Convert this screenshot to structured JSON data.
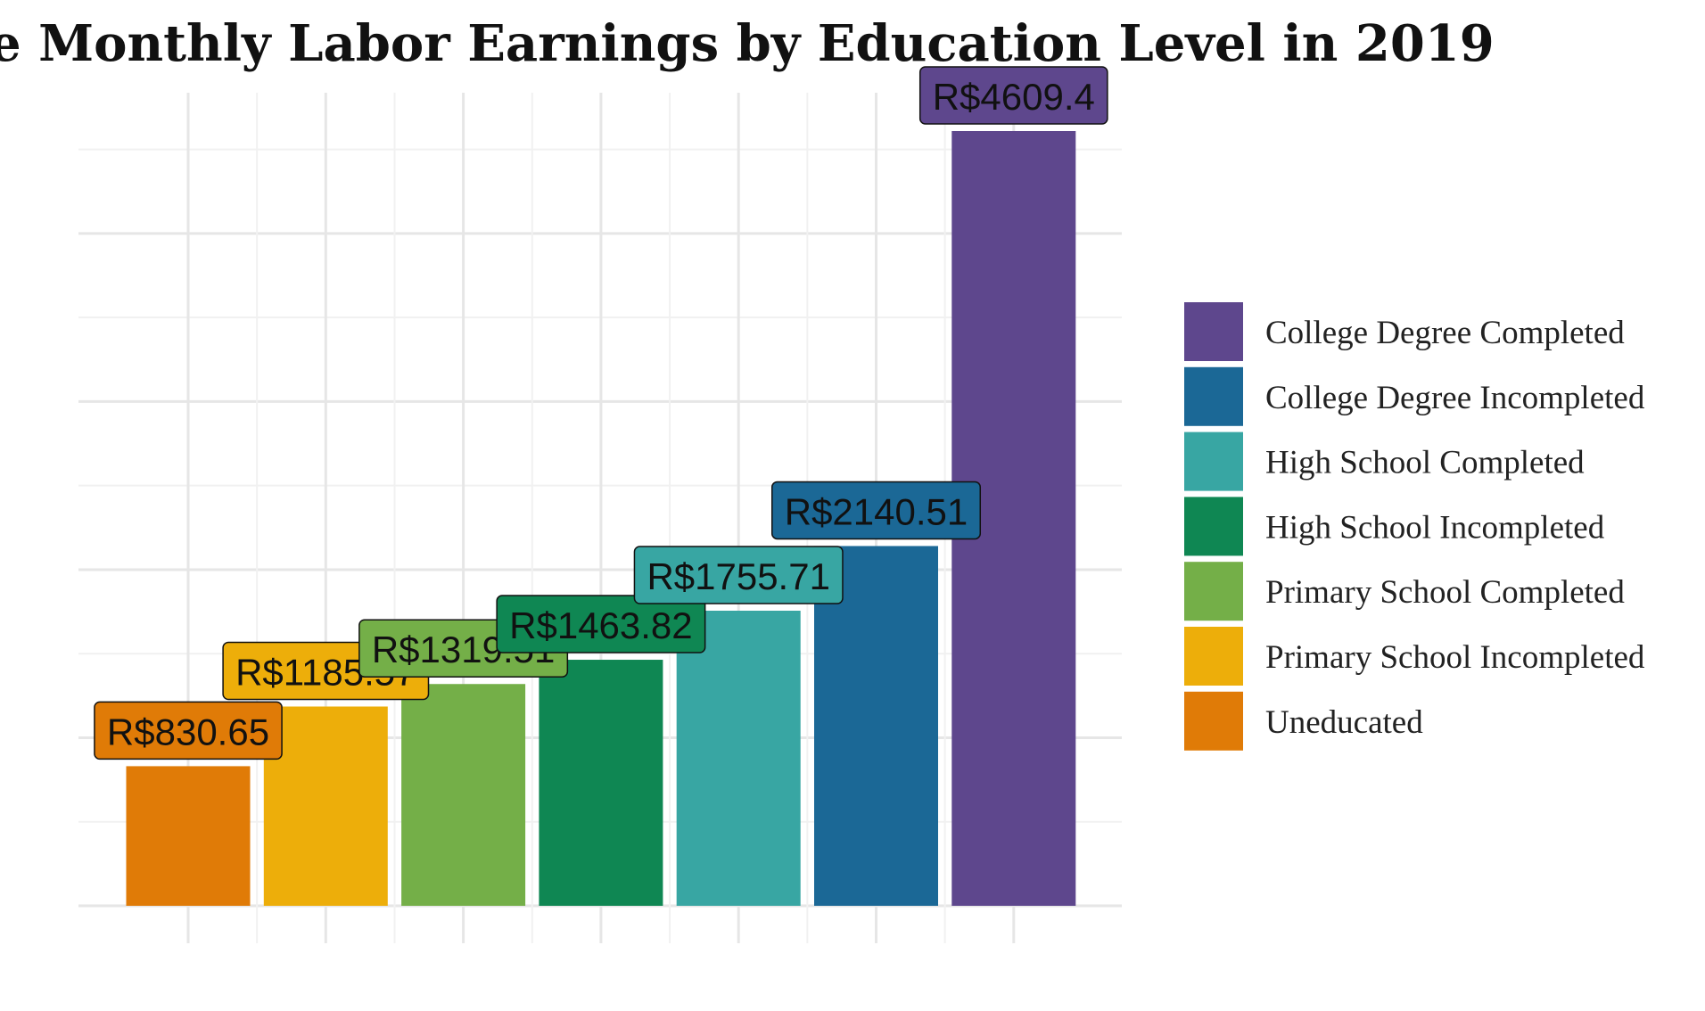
{
  "chart_data": {
    "type": "bar",
    "title": "e Monthly Labor Earnings by Education Level in 2019",
    "xlabel": "",
    "ylabel": "",
    "ylim": [
      0,
      4800
    ],
    "grid": true,
    "legend_position": "right",
    "categories": [
      "Uneducated",
      "Primary School Incompleted",
      "Primary School Completed",
      "High School Incompleted",
      "High School Completed",
      "College Degree Incompleted",
      "College Degree Completed"
    ],
    "values": [
      830.65,
      1185.57,
      1319.51,
      1463.82,
      1755.71,
      2140.51,
      4609.4
    ],
    "data_labels": [
      "R$830.65",
      "R$1185.57",
      "R$1319.51",
      "R$1463.82",
      "R$1755.71",
      "R$2140.51",
      "R$4609.4"
    ],
    "colors": [
      "#E07B07",
      "#EDAE0A",
      "#74AF48",
      "#0F8753",
      "#38A6A3",
      "#1B6896",
      "#5E478D"
    ],
    "legend": [
      {
        "label": "College Degree Completed",
        "color": "#5E478D"
      },
      {
        "label": "College Degree Incompleted",
        "color": "#1B6896"
      },
      {
        "label": "High School Completed",
        "color": "#38A6A3"
      },
      {
        "label": "High School Incompleted",
        "color": "#0F8753"
      },
      {
        "label": "Primary School Completed",
        "color": "#74AF48"
      },
      {
        "label": "Primary School Incompleted",
        "color": "#EDAE0A"
      },
      {
        "label": "Uneducated",
        "color": "#E07B07"
      }
    ]
  }
}
